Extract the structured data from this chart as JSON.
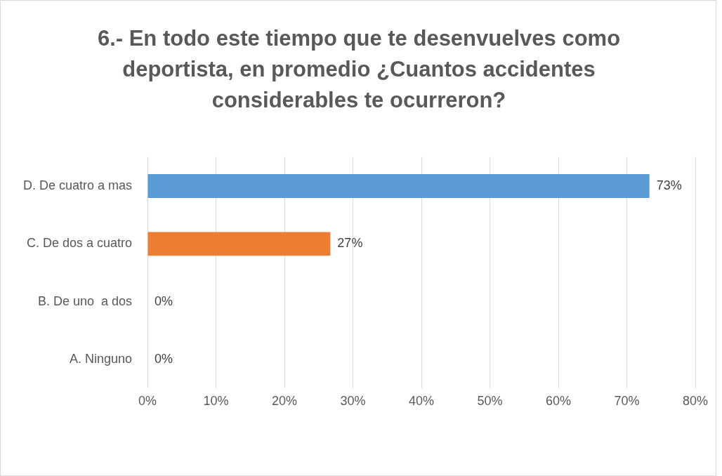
{
  "chart_data": {
    "type": "bar",
    "orientation": "horizontal",
    "title": "6.- En todo este tiempo que te desenvuelves como deportista, en promedio ¿Cuantos accidentes considerables te ocurreron?",
    "categories": [
      "D. De cuatro a mas",
      "C. De dos a cuatro",
      "B. De uno  a dos",
      "A. Ninguno"
    ],
    "values": [
      73.3,
      26.7,
      0,
      0
    ],
    "colors": [
      "#5b9bd5",
      "#ed7d31",
      "#a5a5a5",
      "#ffc000"
    ],
    "value_labels": [
      "73%",
      "27%",
      "0%",
      "0%"
    ],
    "xlim": [
      0,
      80
    ],
    "xticks": [
      {
        "value": 0,
        "label": "0%"
      },
      {
        "value": 10,
        "label": "10%"
      },
      {
        "value": 20,
        "label": "20%"
      },
      {
        "value": 30,
        "label": "30%"
      },
      {
        "value": 40,
        "label": "40%"
      },
      {
        "value": 50,
        "label": "50%"
      },
      {
        "value": 60,
        "label": "60%"
      },
      {
        "value": 70,
        "label": "70%"
      },
      {
        "value": 80,
        "label": "80%"
      }
    ],
    "grid": "x",
    "legend": false
  }
}
